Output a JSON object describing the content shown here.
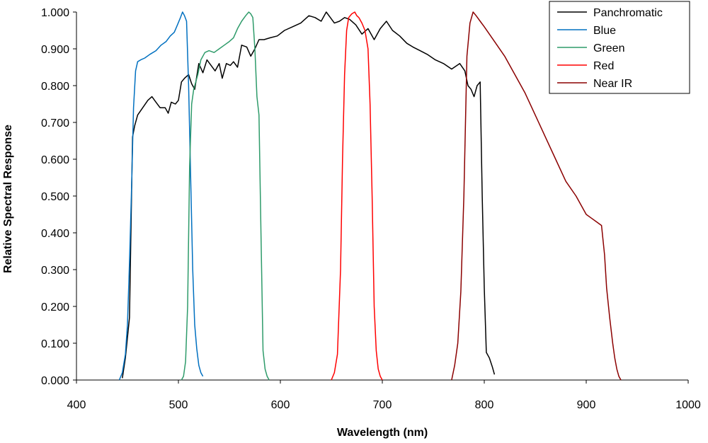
{
  "chart_data": {
    "type": "line",
    "title": "",
    "xlabel": "Wavelength (nm)",
    "ylabel": "Relative Spectral Response",
    "xlim": [
      400,
      1000
    ],
    "ylim": [
      0,
      1
    ],
    "xticks": [
      400,
      500,
      600,
      700,
      800,
      900,
      1000
    ],
    "xtick_labels": [
      "400",
      "500",
      "600",
      "700",
      "800",
      "900",
      "1000"
    ],
    "yticks": [
      0,
      0.1,
      0.2,
      0.3,
      0.4,
      0.5,
      0.6,
      0.7,
      0.8,
      0.9,
      1.0
    ],
    "ytick_labels": [
      "0.000",
      "0.100",
      "0.200",
      "0.300",
      "0.400",
      "0.500",
      "0.600",
      "0.700",
      "0.800",
      "0.900",
      "1.000"
    ],
    "grid": false,
    "legend_position": "top-right",
    "series": [
      {
        "name": "Panchromatic",
        "color": "#000000",
        "x": [
          445,
          448,
          452,
          455,
          457,
          460,
          465,
          470,
          474,
          478,
          482,
          487,
          490,
          493,
          497,
          500,
          503,
          506,
          510,
          513,
          516,
          520,
          524,
          528,
          532,
          536,
          540,
          543,
          547,
          551,
          554,
          558,
          562,
          567,
          571,
          575,
          579,
          584,
          590,
          597,
          604,
          612,
          620,
          628,
          634,
          640,
          645,
          649,
          653,
          658,
          663,
          668,
          674,
          680,
          686,
          692,
          698,
          704,
          710,
          717,
          724,
          730,
          737,
          744,
          752,
          760,
          768,
          776,
          781,
          784,
          787,
          790,
          793,
          796,
          798,
          800,
          802,
          805,
          808,
          810
        ],
        "y": [
          0.005,
          0.06,
          0.17,
          0.66,
          0.69,
          0.72,
          0.74,
          0.76,
          0.77,
          0.755,
          0.74,
          0.74,
          0.725,
          0.755,
          0.75,
          0.76,
          0.81,
          0.82,
          0.83,
          0.805,
          0.79,
          0.86,
          0.835,
          0.87,
          0.855,
          0.84,
          0.86,
          0.82,
          0.86,
          0.855,
          0.865,
          0.85,
          0.91,
          0.905,
          0.88,
          0.9,
          0.925,
          0.925,
          0.93,
          0.935,
          0.95,
          0.96,
          0.97,
          0.99,
          0.985,
          0.975,
          1.0,
          0.985,
          0.97,
          0.975,
          0.985,
          0.98,
          0.965,
          0.94,
          0.955,
          0.925,
          0.955,
          0.975,
          0.95,
          0.935,
          0.915,
          0.905,
          0.895,
          0.885,
          0.87,
          0.86,
          0.845,
          0.86,
          0.84,
          0.8,
          0.79,
          0.77,
          0.8,
          0.81,
          0.5,
          0.25,
          0.075,
          0.06,
          0.035,
          0.015
        ]
      },
      {
        "name": "Blue",
        "color": "#0070C0",
        "x": [
          442,
          445,
          448,
          450,
          452,
          454,
          456,
          458,
          460,
          463,
          467,
          472,
          478,
          483,
          488,
          492,
          496,
          499,
          502,
          504,
          506,
          508,
          510,
          512,
          514,
          516,
          518,
          520,
          522,
          524
        ],
        "y": [
          0.0,
          0.02,
          0.07,
          0.15,
          0.32,
          0.52,
          0.74,
          0.84,
          0.865,
          0.87,
          0.875,
          0.885,
          0.895,
          0.91,
          0.92,
          0.935,
          0.945,
          0.965,
          0.985,
          1.0,
          0.99,
          0.975,
          0.8,
          0.55,
          0.3,
          0.15,
          0.085,
          0.04,
          0.02,
          0.01
        ]
      },
      {
        "name": "Green",
        "color": "#2E9B6A",
        "x": [
          503,
          505,
          507,
          509,
          511,
          513,
          515,
          517,
          519,
          522,
          526,
          530,
          535,
          540,
          545,
          550,
          554,
          558,
          562,
          566,
          569,
          571,
          573,
          575,
          577,
          579,
          581,
          583,
          585,
          587,
          589
        ],
        "y": [
          0.0,
          0.01,
          0.05,
          0.2,
          0.58,
          0.75,
          0.79,
          0.81,
          0.83,
          0.87,
          0.89,
          0.895,
          0.89,
          0.9,
          0.91,
          0.92,
          0.93,
          0.955,
          0.975,
          0.99,
          1.0,
          0.995,
          0.985,
          0.9,
          0.77,
          0.72,
          0.4,
          0.08,
          0.03,
          0.01,
          0.0
        ]
      },
      {
        "name": "Red",
        "color": "#FF0000",
        "x": [
          650,
          653,
          656,
          659,
          661,
          663,
          665,
          667,
          670,
          673,
          675,
          677,
          680,
          683,
          686,
          688,
          690,
          692,
          694,
          696,
          698,
          700
        ],
        "y": [
          0.0,
          0.02,
          0.07,
          0.3,
          0.6,
          0.83,
          0.95,
          0.985,
          0.995,
          1.0,
          0.99,
          0.985,
          0.97,
          0.95,
          0.9,
          0.75,
          0.5,
          0.2,
          0.08,
          0.03,
          0.01,
          0.0
        ]
      },
      {
        "name": "Near IR",
        "color": "#8B0000",
        "x": [
          768,
          771,
          774,
          777,
          780,
          783,
          786,
          789,
          792,
          796,
          800,
          805,
          810,
          820,
          830,
          840,
          850,
          860,
          870,
          880,
          890,
          900,
          905,
          910,
          915,
          918,
          920,
          923,
          926,
          928,
          930,
          932,
          934
        ],
        "y": [
          0.0,
          0.04,
          0.1,
          0.24,
          0.5,
          0.88,
          0.97,
          1.0,
          0.99,
          0.975,
          0.96,
          0.94,
          0.92,
          0.88,
          0.83,
          0.78,
          0.72,
          0.66,
          0.6,
          0.54,
          0.5,
          0.45,
          0.44,
          0.43,
          0.42,
          0.34,
          0.25,
          0.17,
          0.1,
          0.06,
          0.03,
          0.01,
          0.0
        ]
      }
    ]
  }
}
